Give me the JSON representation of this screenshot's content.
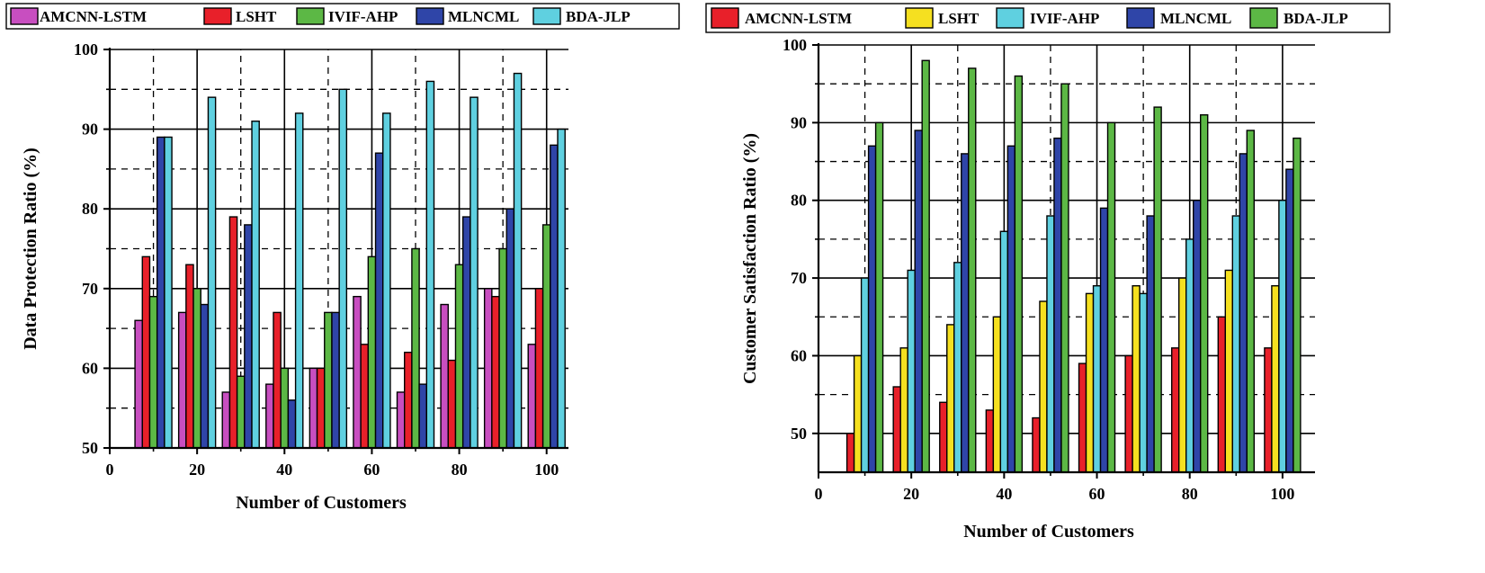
{
  "chart_data": [
    {
      "type": "bar",
      "id": "data-protection",
      "xlabel": "Number of Customers",
      "ylabel": "Data Protection Ratio (%)",
      "ylim": [
        50,
        100
      ],
      "xlim": [
        0,
        105
      ],
      "yticks": [
        50,
        60,
        70,
        80,
        90,
        100
      ],
      "xticks": [
        0,
        20,
        40,
        60,
        80,
        100
      ],
      "categories": [
        10,
        20,
        30,
        40,
        50,
        60,
        70,
        80,
        90,
        100
      ],
      "series": [
        {
          "name": "AMCNN-LSTM",
          "color": "#c84ec0",
          "values": [
            66,
            67,
            57,
            58,
            60,
            69,
            57,
            68,
            70,
            63
          ]
        },
        {
          "name": "LSHT",
          "color": "#e8202a",
          "values": [
            74,
            73,
            79,
            67,
            60,
            63,
            62,
            61,
            69,
            70
          ]
        },
        {
          "name": "IVIF-AHP",
          "color": "#5cb845",
          "values": [
            69,
            70,
            59,
            60,
            67,
            74,
            75,
            73,
            75,
            78
          ]
        },
        {
          "name": "MLNCML",
          "color": "#2f45a8",
          "values": [
            89,
            68,
            78,
            56,
            67,
            87,
            58,
            79,
            80,
            88
          ]
        },
        {
          "name": "BDA-JLP",
          "color": "#5fd0e0",
          "values": [
            89,
            94,
            91,
            92,
            95,
            92,
            96,
            94,
            97,
            90
          ]
        }
      ]
    },
    {
      "type": "bar",
      "id": "customer-satisfaction",
      "xlabel": "Number of Customers",
      "ylabel": "Customer Satisfaction Ratio (%)",
      "ylim": [
        45,
        100
      ],
      "xlim": [
        0,
        107
      ],
      "yticks": [
        50,
        60,
        70,
        80,
        90,
        100
      ],
      "xticks": [
        0,
        20,
        40,
        60,
        80,
        100
      ],
      "categories": [
        10,
        20,
        30,
        40,
        50,
        60,
        70,
        80,
        90,
        100
      ],
      "series": [
        {
          "name": "AMCNN-LSTM",
          "color": "#e8202a",
          "values": [
            50,
            56,
            54,
            53,
            52,
            59,
            60,
            61,
            65,
            61
          ]
        },
        {
          "name": "LSHT",
          "color": "#f5e020",
          "values": [
            60,
            61,
            64,
            65,
            67,
            68,
            69,
            70,
            71,
            69
          ]
        },
        {
          "name": "IVIF-AHP",
          "color": "#5fd0e0",
          "values": [
            70,
            71,
            72,
            76,
            78,
            69,
            68,
            75,
            78,
            80
          ]
        },
        {
          "name": "MLNCML",
          "color": "#2f45a8",
          "values": [
            87,
            89,
            86,
            87,
            88,
            79,
            78,
            80,
            86,
            84
          ]
        },
        {
          "name": "BDA-JLP",
          "color": "#5cb845",
          "values": [
            90,
            98,
            97,
            96,
            95,
            90,
            92,
            91,
            89,
            88
          ]
        }
      ]
    }
  ]
}
